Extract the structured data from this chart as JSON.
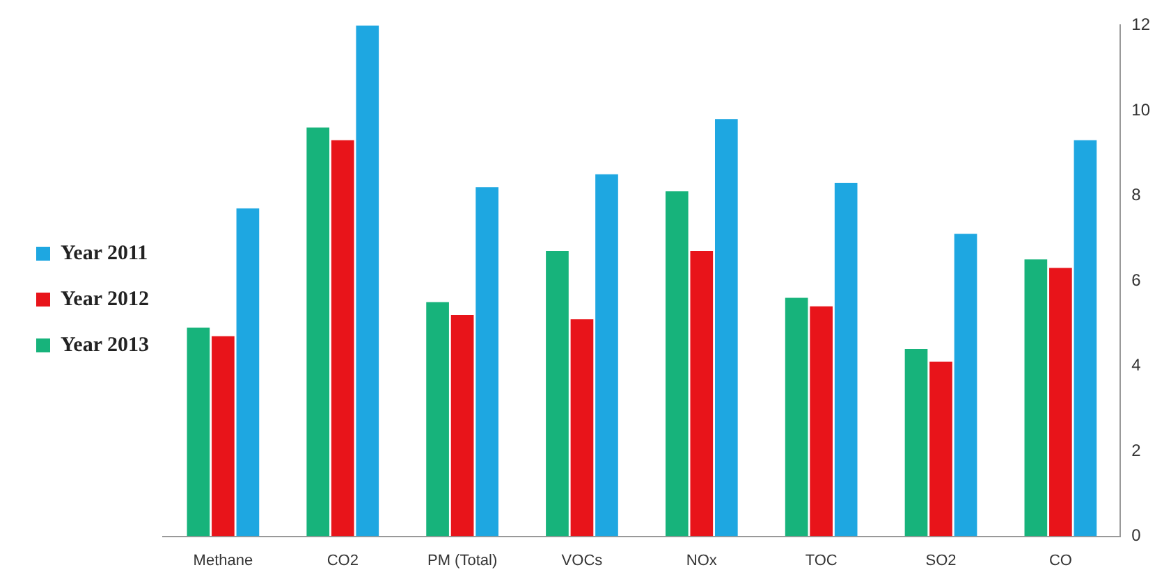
{
  "chart_data": {
    "type": "bar",
    "categories": [
      "Methane",
      "CO2",
      "PM (Total)",
      "VOCs",
      "NOx",
      "TOC",
      "SO2",
      "CO"
    ],
    "series": [
      {
        "name": "Year 2013",
        "color": "#17b37b",
        "values": [
          4.9,
          9.6,
          5.5,
          6.7,
          8.1,
          5.6,
          4.4,
          6.5
        ]
      },
      {
        "name": "Year 2012",
        "color": "#e8141a",
        "values": [
          4.7,
          9.3,
          5.2,
          5.1,
          6.7,
          5.4,
          4.1,
          6.3
        ]
      },
      {
        "name": "Year 2011",
        "color": "#1ea7e1",
        "values": [
          7.7,
          12,
          8.2,
          8.5,
          9.8,
          8.3,
          7.1,
          9.3
        ]
      }
    ],
    "ylim": [
      0,
      12
    ],
    "yticks": [
      0,
      2,
      4,
      6,
      8,
      10,
      12
    ],
    "grid": false,
    "legend": "left"
  }
}
